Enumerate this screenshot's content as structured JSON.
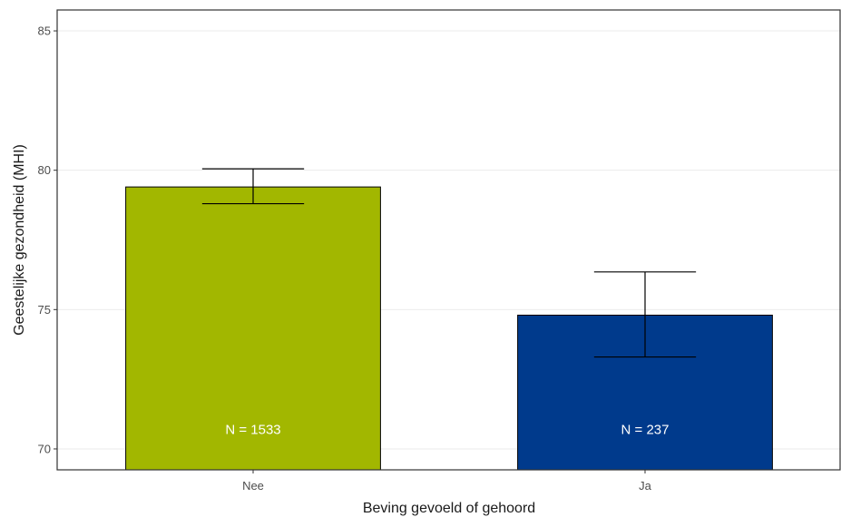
{
  "chart_data": {
    "type": "bar",
    "categories": [
      "Nee",
      "Ja"
    ],
    "values": [
      79.4,
      74.8
    ],
    "error_low": [
      78.8,
      73.3
    ],
    "error_high": [
      80.05,
      76.35
    ],
    "bar_labels": [
      "N = 1533",
      "N = 237"
    ],
    "colors": [
      "#a2b700",
      "#003a8c"
    ],
    "xlabel": "Beving gevoeld of gehoord",
    "ylabel": "Geestelijke gezondheid (MHI)",
    "yticks": [
      "70",
      "75",
      "80",
      "85"
    ],
    "ytick_values": [
      70,
      75,
      80,
      85
    ],
    "ylim": [
      69.25,
      85.75
    ],
    "grid": true,
    "legend": "none"
  }
}
